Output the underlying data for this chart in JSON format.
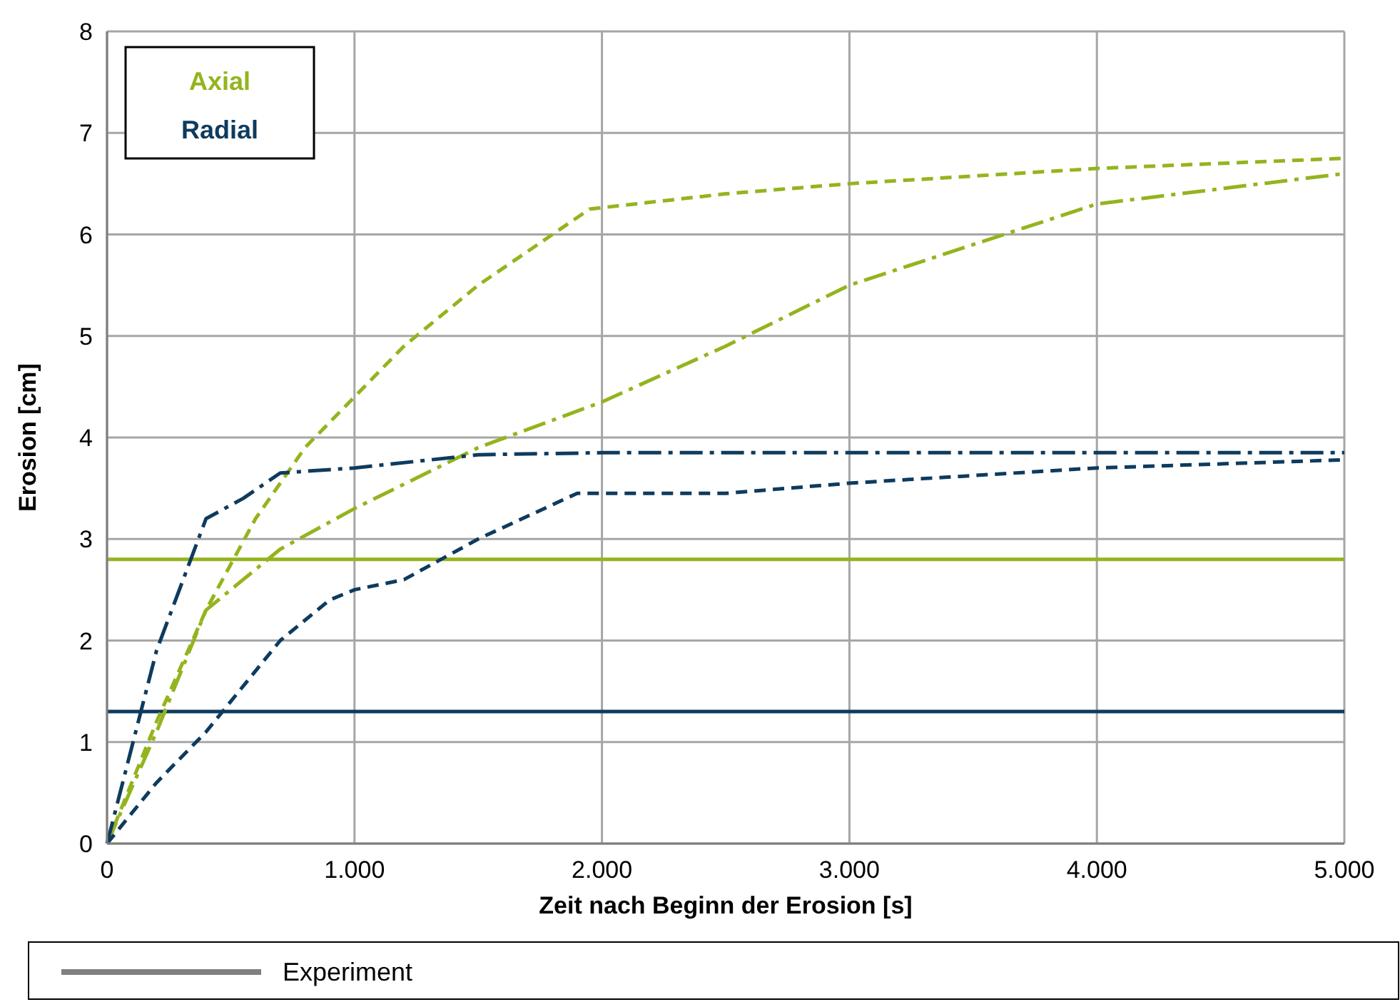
{
  "chart_data": {
    "type": "line",
    "xlabel": "Zeit nach Beginn der Erosion [s]",
    "ylabel": "Erosion [cm]",
    "xlim": [
      0,
      5000
    ],
    "ylim": [
      0,
      8
    ],
    "xticks": [
      0,
      {
        "value": 1000,
        "label": "1.000"
      },
      {
        "value": 2000,
        "label": "2.000"
      },
      {
        "value": 3000,
        "label": "3.000"
      },
      {
        "value": 4000,
        "label": "4.000"
      },
      {
        "value": 5000,
        "label": "5.000"
      }
    ],
    "yticks": [
      0,
      1,
      2,
      3,
      4,
      5,
      6,
      7,
      8
    ],
    "grid": true,
    "annotations": [
      "Axial",
      "Radial",
      "Experiment"
    ],
    "series": [
      {
        "color": "#94b41e",
        "line_style": "solid",
        "x": [
          0,
          5000
        ],
        "values": [
          2.8,
          2.8
        ]
      },
      {
        "color": "#0e3b5e",
        "line_style": "solid",
        "x": [
          0,
          5000
        ],
        "values": [
          1.3,
          1.3
        ]
      },
      {
        "color": "#94b41e",
        "line_style": "dashed",
        "x": [
          0,
          200,
          400,
          600,
          800,
          1000,
          1200,
          1500,
          1800,
          1950,
          2500,
          3000,
          4000,
          5000
        ],
        "values": [
          0,
          1.2,
          2.3,
          3.2,
          3.9,
          4.4,
          4.9,
          5.5,
          6.0,
          6.25,
          6.4,
          6.5,
          6.65,
          6.75
        ]
      },
      {
        "color": "#94b41e",
        "line_style": "dashdot",
        "x": [
          0,
          200,
          400,
          550,
          700,
          1000,
          1500,
          2000,
          2500,
          3000,
          3500,
          4000,
          4500,
          5000
        ],
        "values": [
          0,
          1.1,
          2.3,
          2.6,
          2.9,
          3.3,
          3.9,
          4.35,
          4.9,
          5.5,
          5.9,
          6.3,
          6.45,
          6.6
        ]
      },
      {
        "color": "#0e3b5e",
        "line_style": "dashed",
        "x": [
          0,
          200,
          400,
          500,
          700,
          900,
          1000,
          1200,
          1500,
          1900,
          2500,
          3000,
          4000,
          5000
        ],
        "values": [
          0,
          0.6,
          1.1,
          1.4,
          2.0,
          2.4,
          2.5,
          2.6,
          3.0,
          3.45,
          3.45,
          3.55,
          3.7,
          3.78
        ]
      },
      {
        "color": "#0e3b5e",
        "line_style": "dashdot",
        "x": [
          0,
          200,
          400,
          550,
          700,
          1000,
          1500,
          2000,
          5000
        ],
        "values": [
          0,
          1.9,
          3.2,
          3.4,
          3.65,
          3.7,
          3.83,
          3.85,
          3.85
        ]
      }
    ]
  }
}
